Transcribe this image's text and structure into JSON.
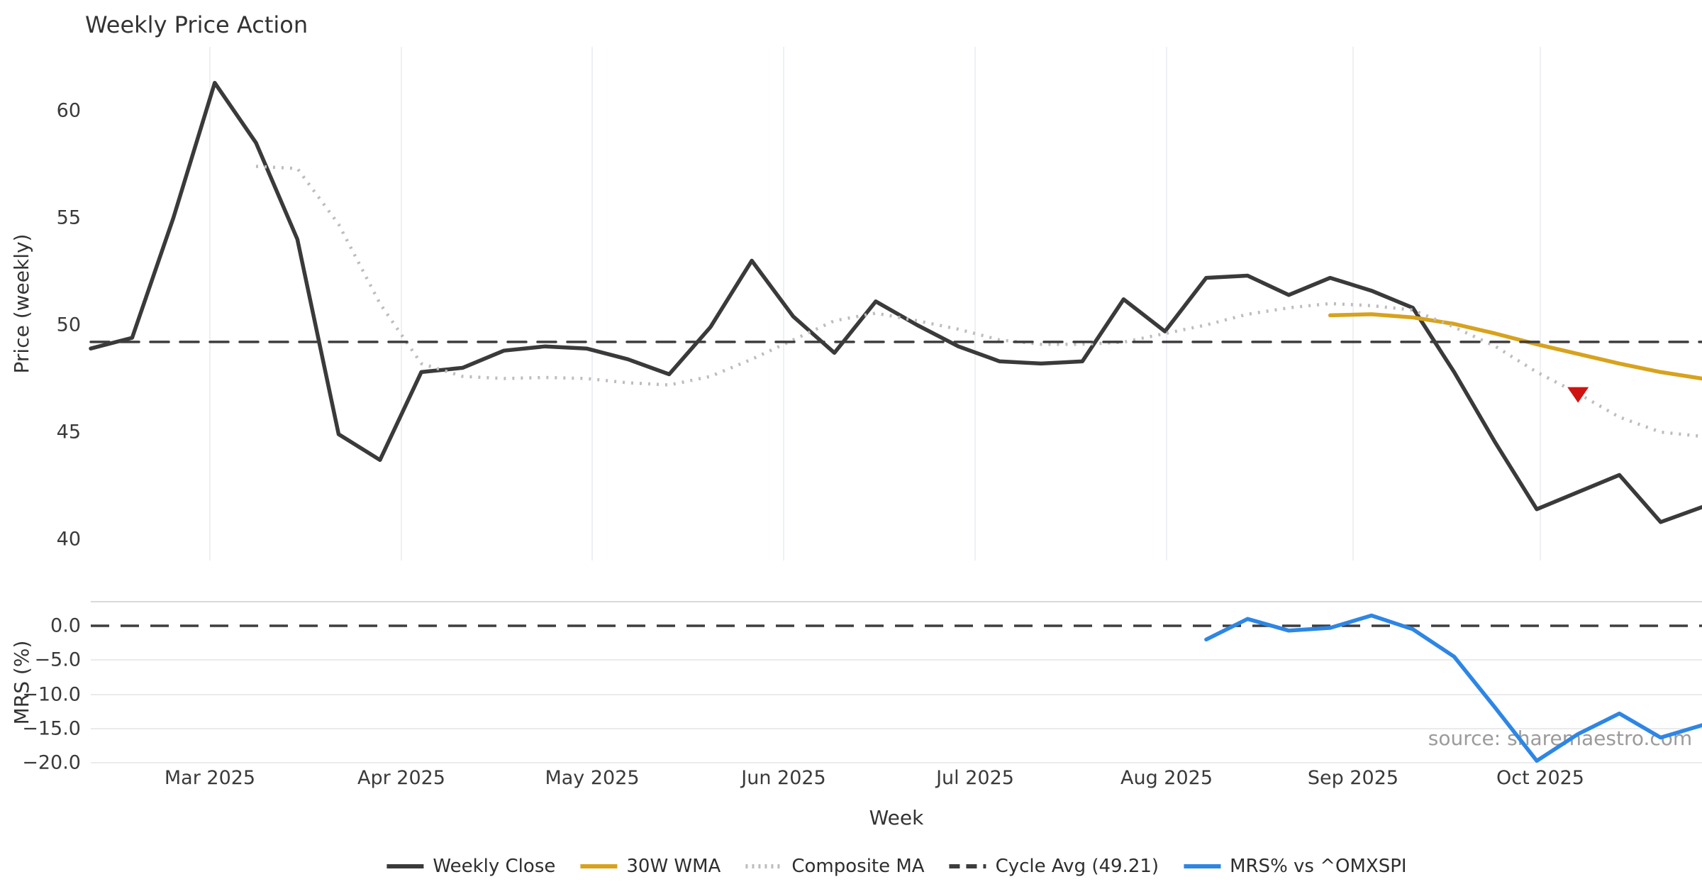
{
  "source_note": "source: sharemaestro.com",
  "chart_data": {
    "type": "line",
    "title": "Weekly Price Action",
    "x_axis": {
      "label": "Week",
      "tick_labels": [
        "Mar 2025",
        "Apr 2025",
        "May 2025",
        "Jun 2025",
        "Jul 2025",
        "Aug 2025",
        "Sep 2025",
        "Oct 2025"
      ]
    },
    "panels": [
      {
        "id": "price",
        "ylabel": "Price (weekly)",
        "ylim": [
          39.0,
          63.0
        ],
        "yticks": [
          60,
          55,
          50,
          45,
          40
        ],
        "ytick_labels": [
          "60",
          "55",
          "50",
          "45",
          "40"
        ],
        "grid": "vertical-month-lines"
      },
      {
        "id": "mrs",
        "ylabel": "MRS (%)",
        "ylim": [
          -20.3,
          3.6
        ],
        "yticks": [
          0.0,
          -5.0,
          -10.0,
          -15.0,
          -20.0
        ],
        "ytick_labels": [
          "0.0",
          "−5.0",
          "−10.0",
          "−15.0",
          "−20.0"
        ],
        "grid": "horizontal-lines"
      }
    ],
    "n_weeks": 40,
    "series": [
      {
        "name": "Weekly Close",
        "panel": "price",
        "color": "#3a3a3a",
        "style": "solid",
        "width": 5.5,
        "start_index": 0,
        "values": [
          48.9,
          49.4,
          55.0,
          61.3,
          58.5,
          54.0,
          44.9,
          43.7,
          47.8,
          48.0,
          48.8,
          49.0,
          48.9,
          48.4,
          47.7,
          49.9,
          53.0,
          50.4,
          48.7,
          51.1,
          50.0,
          49.0,
          48.3,
          48.2,
          48.3,
          51.2,
          49.7,
          52.2,
          52.3,
          51.4,
          52.2,
          51.6,
          50.8,
          47.8,
          44.5,
          41.4,
          42.2,
          43.0,
          40.8,
          41.5
        ]
      },
      {
        "name": "30W WMA",
        "panel": "price",
        "color": "#d7a21d",
        "style": "solid",
        "width": 5.5,
        "start_index": 30,
        "values": [
          50.45,
          50.5,
          50.35,
          50.05,
          49.6,
          49.1,
          48.65,
          48.2,
          47.8,
          47.5
        ]
      },
      {
        "name": "Composite MA",
        "panel": "price",
        "color": "#bdbdbd",
        "style": "dotted",
        "width": 4.5,
        "start_index": 4,
        "values": [
          57.4,
          57.3,
          54.7,
          51.0,
          48.2,
          47.6,
          47.5,
          47.55,
          47.5,
          47.3,
          47.2,
          47.6,
          48.4,
          49.3,
          50.2,
          50.55,
          50.2,
          49.8,
          49.3,
          49.1,
          49.1,
          49.2,
          49.6,
          50.0,
          50.5,
          50.8,
          51.0,
          50.9,
          50.7,
          49.9,
          49.0,
          47.8,
          46.8,
          45.7,
          45.0,
          44.8
        ]
      },
      {
        "name": "Cycle Avg (49.21)",
        "panel": "price",
        "color": "#3d3d3d",
        "style": "dashed",
        "width": 3.5,
        "constant": 49.21
      },
      {
        "name": "MRS% vs ^OMXSPI",
        "panel": "mrs",
        "color": "#2e86e4",
        "style": "solid",
        "width": 5.5,
        "start_index": 27,
        "values": [
          -2.0,
          1.0,
          -0.7,
          -0.3,
          1.5,
          -0.5,
          -4.5,
          -12.0,
          -19.7,
          -15.8,
          -12.8,
          -16.3,
          -14.5
        ]
      }
    ],
    "mrs_zero_dashed_at": 0.0,
    "signal_marker": {
      "shape": "triangle-down",
      "color": "#cf1313",
      "week_index": 36,
      "price": 46.8
    }
  }
}
